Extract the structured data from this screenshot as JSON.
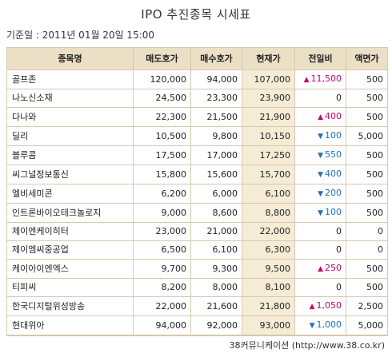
{
  "title": "IPO 추진종목 시세표",
  "base_date": "기준일 : 2011년 01월 20일 15:00",
  "columns": [
    "종목명",
    "매도호가",
    "매수호가",
    "현재가",
    "전일비",
    "액면가"
  ],
  "colors": {
    "header_bg": "#ebdfc6",
    "current_price_bg": "#f6ecd6",
    "up": "#c8006e",
    "down": "#1e6fc0",
    "border": "#d5c8b0"
  },
  "rows": [
    {
      "name": "골프존",
      "ask": "120,000",
      "bid": "94,000",
      "price": "107,000",
      "dir": "up",
      "change": "11,500",
      "par": "500"
    },
    {
      "name": "나노신소재",
      "ask": "24,500",
      "bid": "23,300",
      "price": "23,900",
      "dir": "none",
      "change": "0",
      "par": "500"
    },
    {
      "name": "다나와",
      "ask": "22,300",
      "bid": "21,500",
      "price": "21,900",
      "dir": "up",
      "change": "400",
      "par": "500"
    },
    {
      "name": "딜리",
      "ask": "10,500",
      "bid": "9,800",
      "price": "10,150",
      "dir": "down",
      "change": "100",
      "par": "5,000"
    },
    {
      "name": "블루콤",
      "ask": "17,500",
      "bid": "17,000",
      "price": "17,250",
      "dir": "down",
      "change": "550",
      "par": "500"
    },
    {
      "name": "씨그널정보통신",
      "ask": "15,800",
      "bid": "15,600",
      "price": "15,700",
      "dir": "down",
      "change": "400",
      "par": "500"
    },
    {
      "name": "엘비세미콘",
      "ask": "6,200",
      "bid": "6,000",
      "price": "6,100",
      "dir": "down",
      "change": "200",
      "par": "500"
    },
    {
      "name": "인트론바이오테크놀로지",
      "ask": "9,000",
      "bid": "8,600",
      "price": "8,800",
      "dir": "down",
      "change": "100",
      "par": "500"
    },
    {
      "name": "제이엔케이히터",
      "ask": "23,000",
      "bid": "21,000",
      "price": "22,000",
      "dir": "none",
      "change": "0",
      "par": "0"
    },
    {
      "name": "제이엠씨중공업",
      "ask": "6,500",
      "bid": "6,100",
      "price": "6,300",
      "dir": "none",
      "change": "0",
      "par": "0"
    },
    {
      "name": "케이아이엔엑스",
      "ask": "9,700",
      "bid": "9,300",
      "price": "9,500",
      "dir": "up",
      "change": "250",
      "par": "500"
    },
    {
      "name": "티피씨",
      "ask": "8,200",
      "bid": "8,000",
      "price": "8,100",
      "dir": "none",
      "change": "0",
      "par": "500"
    },
    {
      "name": "한국디지털위성방송",
      "ask": "22,000",
      "bid": "21,600",
      "price": "21,800",
      "dir": "up",
      "change": "1,050",
      "par": "2,500"
    },
    {
      "name": "현대위아",
      "ask": "94,000",
      "bid": "92,000",
      "price": "93,000",
      "dir": "down",
      "change": "1,000",
      "par": "5,000"
    }
  ],
  "footer": "38커뮤니케이션 (http://www.38.co.kr)"
}
